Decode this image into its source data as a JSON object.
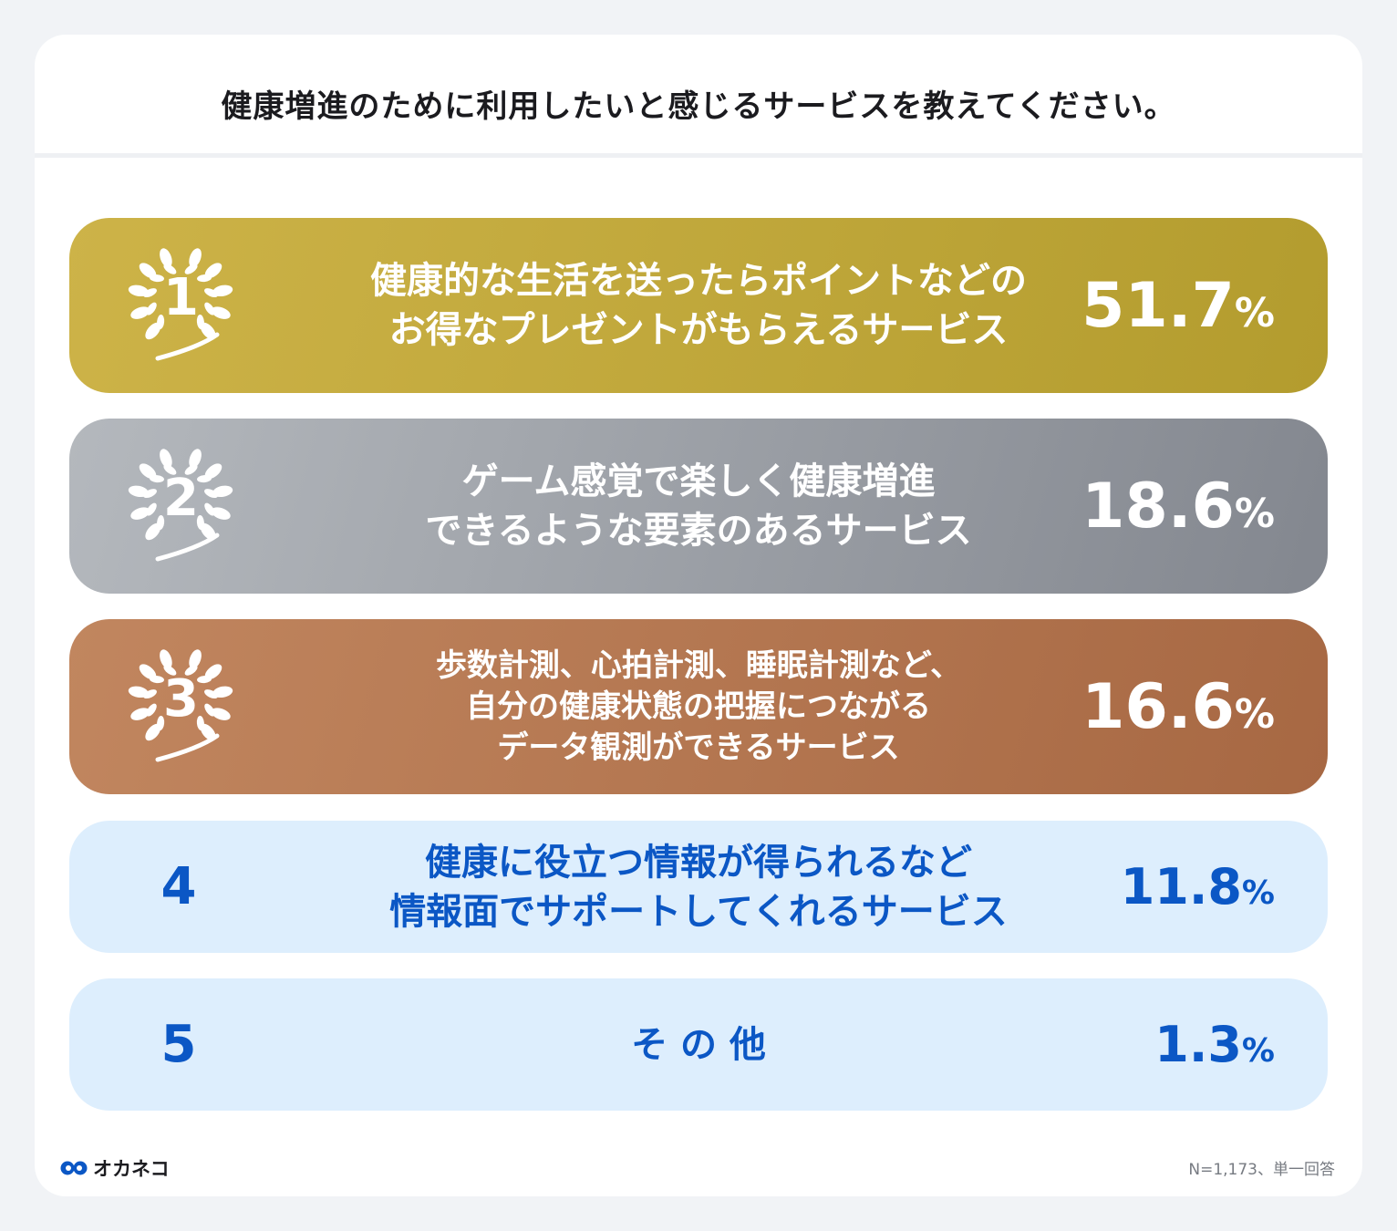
{
  "title": "健康増進のために利用したいと感じるサービスを教えてください。",
  "chart_data": {
    "type": "table",
    "title": "健康増進のために利用したいと感じるサービスを教えてください。",
    "rows": [
      {
        "rank": "1",
        "label_lines": [
          "健康的な生活を送ったらポイントなどの",
          "お得なプレゼントがもらえるサービス"
        ],
        "value": "51.7",
        "unit": "%"
      },
      {
        "rank": "2",
        "label_lines": [
          "ゲーム感覚で楽しく健康増進",
          "できるような要素のあるサービス"
        ],
        "value": "18.6",
        "unit": "%"
      },
      {
        "rank": "3",
        "label_lines": [
          "歩数計測、心拍計測、睡眠計測など、",
          "自分の健康状態の把握につながる",
          "データ観測ができるサービス"
        ],
        "value": "16.6",
        "unit": "%"
      },
      {
        "rank": "4",
        "label_lines": [
          "健康に役立つ情報が得られるなど",
          "情報面でサポートしてくれるサービス"
        ],
        "value": "11.8",
        "unit": "%"
      },
      {
        "rank": "5",
        "label_lines": [
          "そ の 他"
        ],
        "value": "1.3",
        "unit": "%"
      }
    ]
  },
  "footer": {
    "brand": "オカネコ",
    "note": "N=1,173、単一回答"
  },
  "colors": {
    "gold": "#c2a83d",
    "silver": "#9a9ea5",
    "bronze": "#b47652",
    "light_row": "#ddeefd",
    "accent_blue": "#0b57c5"
  },
  "icons": {
    "laurel": "laurel-wreath-icon",
    "brand": "owl-eyes-icon"
  }
}
